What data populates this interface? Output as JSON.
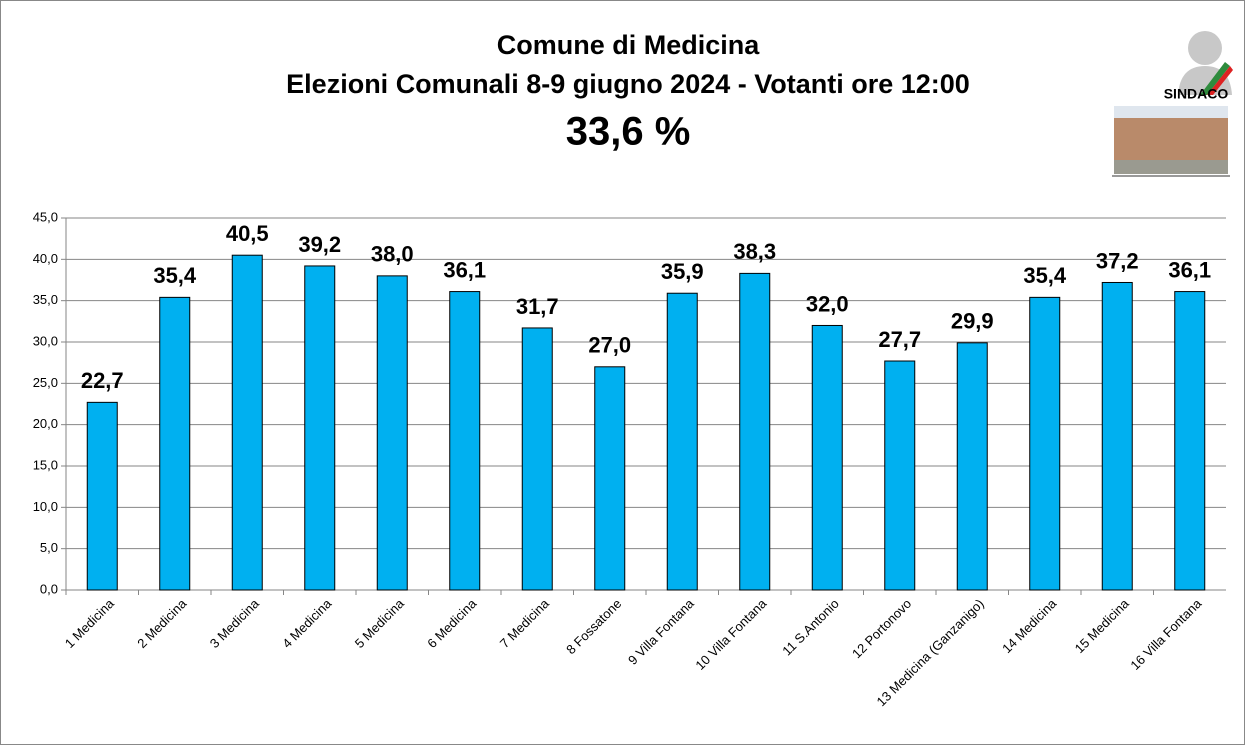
{
  "chart_data": {
    "type": "bar",
    "title": "Comune di Medicina",
    "subtitle": "Elezioni Comunali 8-9 giugno 2024 - Votanti ore 12:00",
    "annotation": "33,6 %",
    "categories": [
      "1 Medicina",
      "2 Medicina",
      "3 Medicina",
      "4 Medicina",
      "5 Medicina",
      "6 Medicina",
      "7 Medicina",
      "8 Fossatone",
      "9 Villa Fontana",
      "10 Villa Fontana",
      "11 S.Antonio",
      "12 Portonovo",
      "13 Medicina (Ganzanigo)",
      "14 Medicina",
      "15 Medicina",
      "16 Villa Fontana"
    ],
    "values": [
      22.7,
      35.4,
      40.5,
      39.2,
      38.0,
      36.1,
      31.7,
      27.0,
      35.9,
      38.3,
      32.0,
      27.7,
      29.9,
      35.4,
      37.2,
      36.1
    ],
    "value_labels": [
      "22,7",
      "35,4",
      "40,5",
      "39,2",
      "38,0",
      "36,1",
      "31,7",
      "27,0",
      "35,9",
      "38,3",
      "32,0",
      "27,7",
      "29,9",
      "35,4",
      "37,2",
      "36,1"
    ],
    "color": "#00b0f0",
    "ylim": [
      0,
      45
    ],
    "yticks": [
      {
        "value": 0,
        "label": "0,0"
      },
      {
        "value": 5,
        "label": "5,0"
      },
      {
        "value": 10,
        "label": "10,0"
      },
      {
        "value": 15,
        "label": "15,0"
      },
      {
        "value": 20,
        "label": "20,0"
      },
      {
        "value": 25,
        "label": "25,0"
      },
      {
        "value": 30,
        "label": "30,0"
      },
      {
        "value": 35,
        "label": "35,0"
      },
      {
        "value": 40,
        "label": "40,0"
      },
      {
        "value": 45,
        "label": "45,0"
      }
    ],
    "grid": true
  },
  "logo": {
    "text": "SINDACO"
  }
}
